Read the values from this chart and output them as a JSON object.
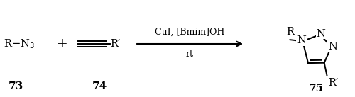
{
  "background_color": "#ffffff",
  "fig_width": 5.0,
  "fig_height": 1.37,
  "dpi": 100,
  "compound73_num": "73",
  "compound74_num": "74",
  "arrow_label_top": "CuI, [Bmim]OH",
  "arrow_label_bottom": "rt",
  "compound75_num": "75",
  "text_color": "#000000",
  "font_size_main": 10.5,
  "font_size_num": 11,
  "font_size_arrow": 9
}
